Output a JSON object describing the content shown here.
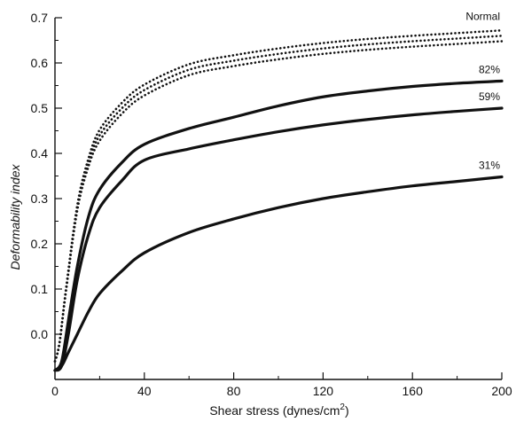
{
  "chart_data": {
    "type": "line",
    "xlabel": "Shear stress (dynes/cm",
    "xlabel_superscript": "2",
    "xlabel_suffix": ")",
    "ylabel": "Deformability index",
    "xlim": [
      0,
      200
    ],
    "ylim": [
      -0.1,
      0.7
    ],
    "xticks": [
      0,
      40,
      80,
      120,
      160,
      200
    ],
    "xtick_labels": [
      "0",
      "40",
      "80",
      "120",
      "160",
      "200"
    ],
    "yticks": [
      0.0,
      0.1,
      0.2,
      0.3,
      0.4,
      0.5,
      0.6,
      0.7
    ],
    "ytick_labels": [
      "0.0",
      "0.1",
      "0.2",
      "0.3",
      "0.4",
      "0.5",
      "0.6",
      "0.7"
    ],
    "grid": false,
    "legend": "none",
    "series": [
      {
        "name": "Normal",
        "style": "dotted",
        "x": [
          0,
          2,
          5,
          10,
          15,
          20,
          30,
          40,
          60,
          80,
          100,
          120,
          140,
          160,
          180,
          200
        ],
        "y": [
          -0.06,
          -0.02,
          0.1,
          0.28,
          0.38,
          0.44,
          0.5,
          0.54,
          0.585,
          0.605,
          0.62,
          0.632,
          0.641,
          0.648,
          0.654,
          0.66
        ]
      },
      {
        "name": "82%",
        "style": "solid",
        "x": [
          0,
          3,
          6,
          10,
          15,
          20,
          30,
          40,
          60,
          80,
          100,
          120,
          140,
          160,
          180,
          200
        ],
        "y": [
          -0.08,
          -0.06,
          0.03,
          0.15,
          0.26,
          0.32,
          0.38,
          0.42,
          0.455,
          0.48,
          0.505,
          0.525,
          0.538,
          0.548,
          0.555,
          0.56
        ]
      },
      {
        "name": "59%",
        "style": "solid",
        "x": [
          0,
          3,
          6,
          10,
          15,
          20,
          30,
          40,
          60,
          80,
          100,
          120,
          140,
          160,
          180,
          200
        ],
        "y": [
          -0.08,
          -0.07,
          0.0,
          0.12,
          0.22,
          0.28,
          0.34,
          0.385,
          0.41,
          0.43,
          0.448,
          0.463,
          0.475,
          0.485,
          0.493,
          0.5
        ]
      },
      {
        "name": "31%",
        "style": "solid",
        "x": [
          0,
          3,
          6,
          10,
          15,
          20,
          30,
          40,
          60,
          80,
          100,
          120,
          140,
          160,
          180,
          200
        ],
        "y": [
          -0.08,
          -0.07,
          -0.04,
          0.0,
          0.05,
          0.09,
          0.14,
          0.18,
          0.225,
          0.255,
          0.28,
          0.3,
          0.315,
          0.328,
          0.338,
          0.348
        ]
      }
    ]
  }
}
